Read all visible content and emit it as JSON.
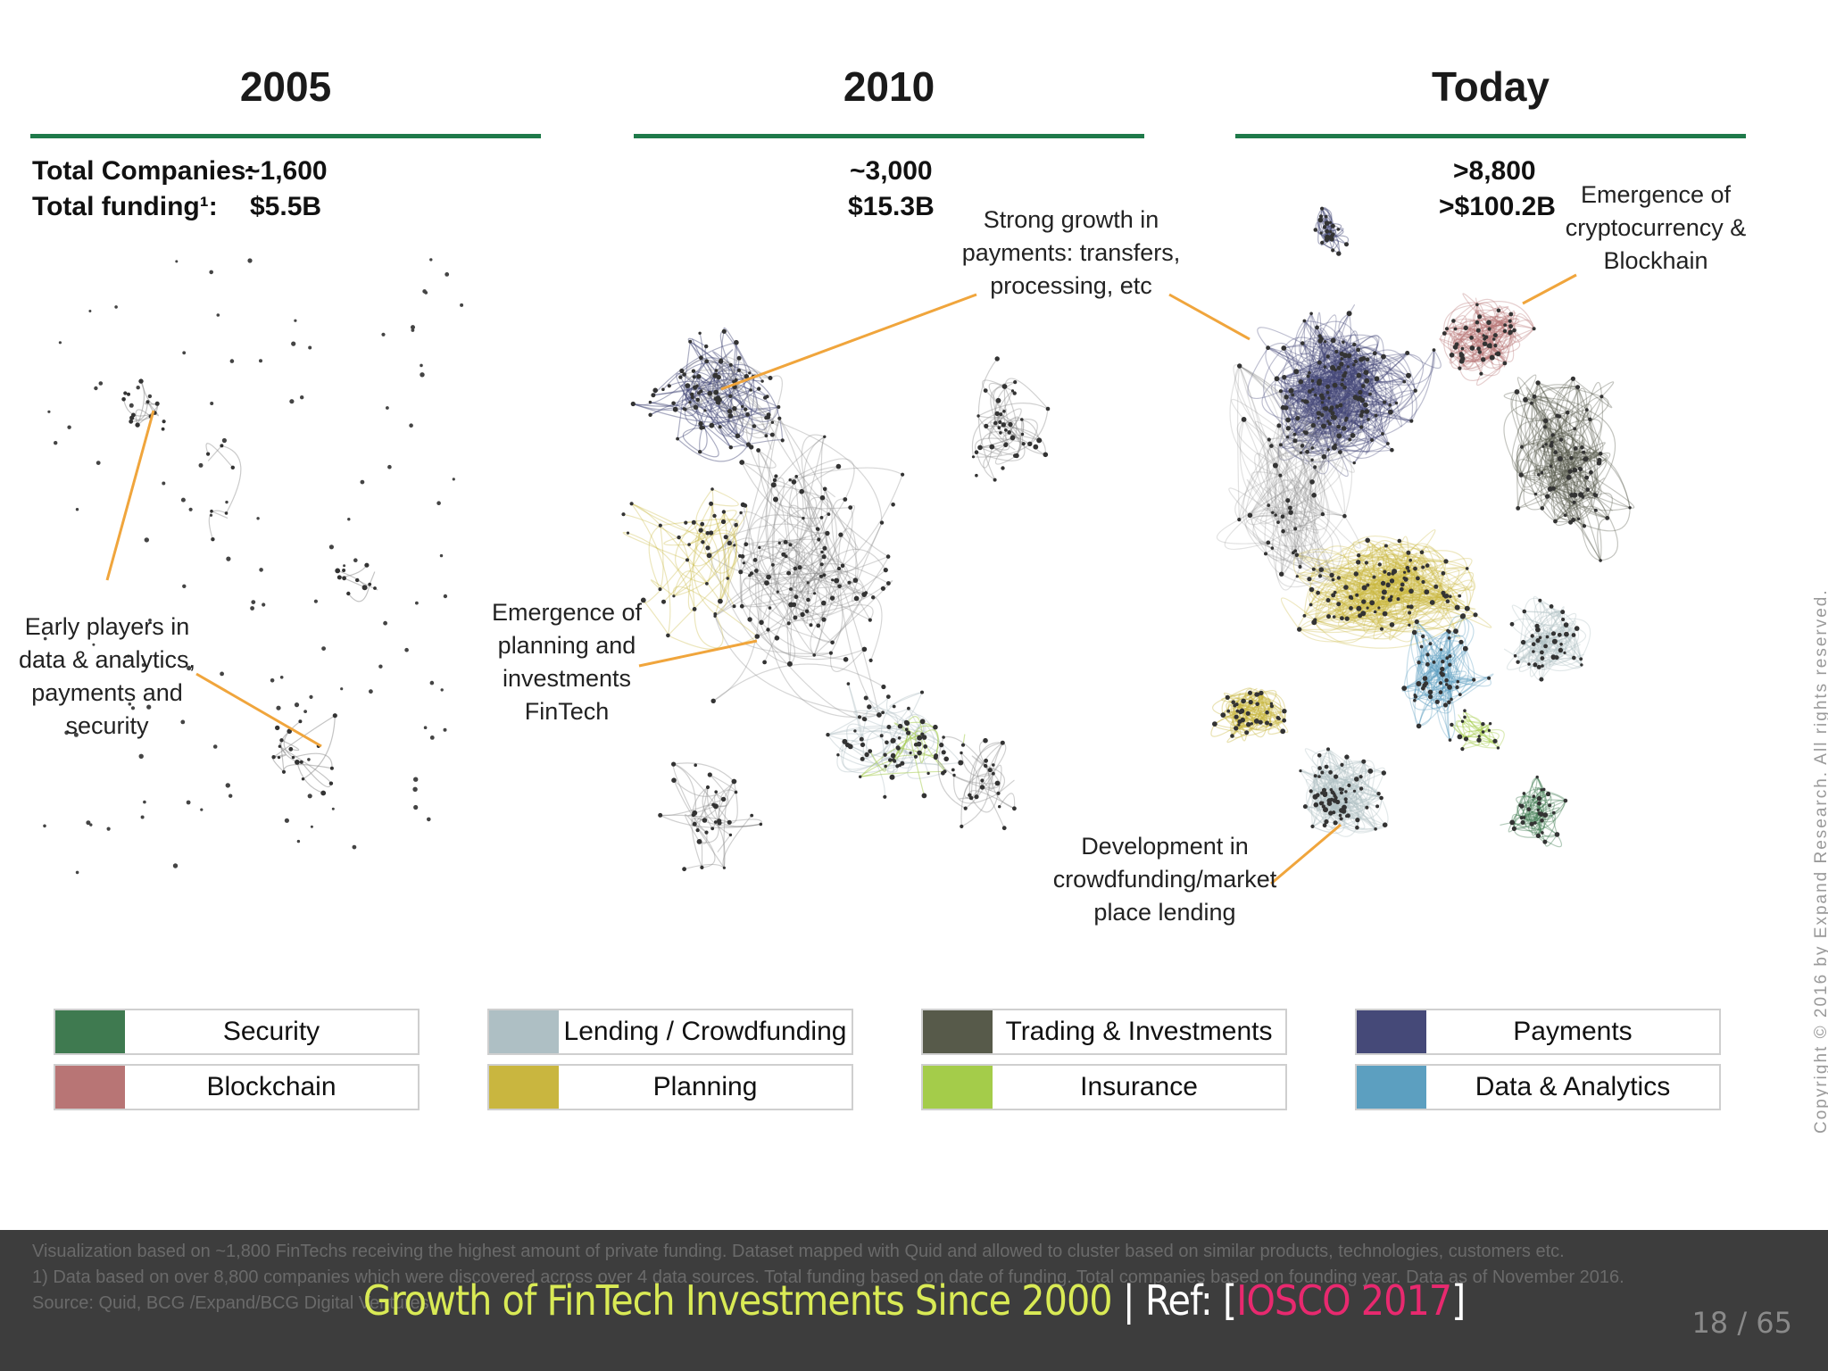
{
  "panels": [
    {
      "title": "2005"
    },
    {
      "title": "2010"
    },
    {
      "title": "Today"
    }
  ],
  "stats": {
    "companies_label": "Total Companies:",
    "funding_label": "Total funding¹:",
    "p2005_companies": "~1,600",
    "p2005_funding": "$5.5B",
    "p2010_companies": "~3,000",
    "p2010_funding": "$15.3B",
    "today_companies": ">8,800",
    "today_funding": ">$100.2B"
  },
  "annotations": {
    "early_players": [
      "Early players in",
      "data & analytics,",
      "payments and",
      "security"
    ],
    "planning": [
      "Emergence of",
      "planning and",
      "investments",
      "FinTech"
    ],
    "payments_growth": [
      "Strong growth in",
      "payments: transfers,",
      "processing, etc"
    ],
    "crypto": [
      "Emergence of",
      "cryptocurrency &",
      "Blockhain"
    ],
    "crowdfunding": [
      "Development in",
      "crowdfunding/market",
      "place lending"
    ]
  },
  "legend": [
    {
      "label": "Security",
      "color": "#3f7a50"
    },
    {
      "label": "Lending / Crowdfunding",
      "color": "#aebfc4"
    },
    {
      "label": "Trading & Investments",
      "color": "#575a4a"
    },
    {
      "label": "Payments",
      "color": "#454978"
    },
    {
      "label": "Blockchain",
      "color": "#b87575"
    },
    {
      "label": "Planning",
      "color": "#c9b63f"
    },
    {
      "label": "Insurance",
      "color": "#a4cc4a"
    },
    {
      "label": "Data & Analytics",
      "color": "#5c9fc0"
    }
  ],
  "copyright": "Copyright © 2016 by Expand Research. All rights reserved.",
  "notes": [
    "Visualization based on ~1,800 FinTechs receiving the highest amount of private funding. Dataset mapped with Quid and allowed to cluster based on similar products, technologies, customers etc.",
    "1) Data based on over 8,800 companies which were discovered across over 4 data sources. Total funding based on date of funding. Total companies based on founding year. Data as of November 2016.",
    "Source: Quid, BCG /Expand/BCG Digital Ventures"
  ],
  "caption": {
    "title": "Growth of FinTech Investments Since 2000",
    "separator": " | Ref: [",
    "ref": "IOSCO 2017",
    "close": "]"
  },
  "page": "18 / 65",
  "colors": {
    "rule": "#1f7a4a",
    "callout": "#f0a53c",
    "footer_bg": "#3d3d3d"
  }
}
